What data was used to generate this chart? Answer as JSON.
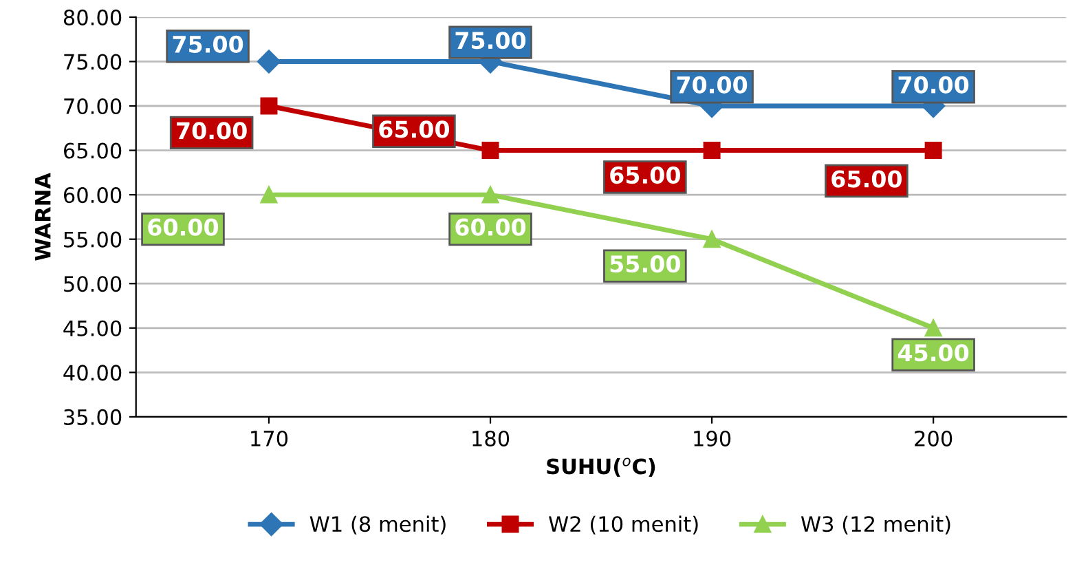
{
  "chart_data": {
    "type": "line",
    "xlabel": "SUHU($^{o}$C)",
    "ylabel": "WARNA",
    "categories": [
      "170",
      "180",
      "190",
      "200"
    ],
    "series": [
      {
        "name": "W1 (8 menit)",
        "color": "#2e75b6",
        "marker": "diamond",
        "values": [
          75,
          75,
          70,
          70
        ],
        "value_labels": [
          "75.00",
          "75.00",
          "70.00",
          "70.00"
        ]
      },
      {
        "name": "W2 (10 menit)",
        "color": "#c00000",
        "marker": "square",
        "values": [
          70,
          65,
          65,
          65
        ],
        "value_labels": [
          "70.00",
          "65.00",
          "65.00",
          "65.00"
        ]
      },
      {
        "name": "W3 (12 menit)",
        "color": "#92d050",
        "marker": "triangle",
        "values": [
          60,
          60,
          55,
          45
        ],
        "value_labels": [
          "60.00",
          "60.00",
          "55.00",
          "45.00"
        ]
      }
    ],
    "ylim": [
      35,
      80
    ],
    "yticks": [
      {
        "value": 35,
        "label": "35.00"
      },
      {
        "value": 40,
        "label": "40.00"
      },
      {
        "value": 45,
        "label": "45.00"
      },
      {
        "value": 50,
        "label": "50.00"
      },
      {
        "value": 55,
        "label": "55.00"
      },
      {
        "value": 60,
        "label": "60.00"
      },
      {
        "value": 65,
        "label": "65.00"
      },
      {
        "value": 70,
        "label": "70.00"
      },
      {
        "value": 75,
        "label": "75.00"
      },
      {
        "value": 80,
        "label": "80.00"
      }
    ],
    "grid": "y",
    "legend": "bottom"
  }
}
